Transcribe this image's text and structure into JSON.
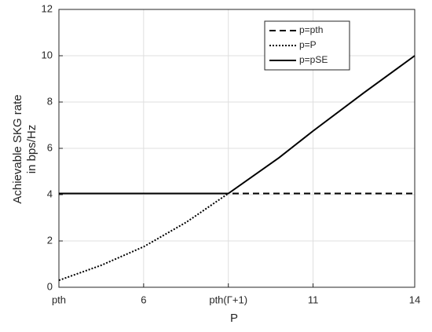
{
  "chart_data": {
    "type": "line",
    "ylabel": [
      "Achievable SKG rate",
      "in bps/Hz"
    ],
    "xlabel": "P",
    "xlim": [
      3.5,
      14
    ],
    "ylim": [
      0,
      12
    ],
    "xticks": [
      {
        "value": 3.5,
        "label": "pth"
      },
      6,
      {
        "value": 8.5,
        "label": "pth(Γ+1)"
      },
      11,
      14
    ],
    "yticks": [
      0,
      2,
      4,
      6,
      8,
      10,
      12
    ],
    "grid": true,
    "legend": "upper right",
    "series": [
      {
        "name": "p=pth",
        "color": "#000000",
        "style": "dashed",
        "x": [
          3.5,
          14
        ],
        "values": [
          4.05,
          4.05
        ]
      },
      {
        "name": "p=P",
        "color": "#000000",
        "style": "dotted",
        "x": [
          3.5,
          4.75,
          6,
          7.25,
          8.5
        ],
        "values": [
          0.3,
          0.95,
          1.75,
          2.8,
          4.05
        ]
      },
      {
        "name": "p=pSE",
        "color": "#000000",
        "style": "solid",
        "x": [
          3.5,
          8.5,
          10,
          11,
          12.5,
          14
        ],
        "values": [
          4.05,
          4.05,
          5.6,
          6.75,
          8.4,
          10
        ]
      }
    ]
  }
}
